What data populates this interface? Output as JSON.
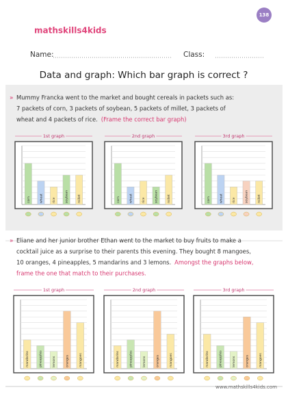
{
  "header": {
    "logo": "mathskills4kids",
    "page_number": "138",
    "name_label": "Name:",
    "class_label": "Class:",
    "title": "Data and graph: Which bar graph is correct ?"
  },
  "sections": [
    {
      "lines": [
        "Mummy Francka went to the market and bought cereals in packets such as:",
        "7 packets of corn, 3 packets of soybean, 5 packets of millet, 3 packets of",
        "wheat and 4 packets of rice."
      ],
      "instruction_lines": [
        "(Frame the correct bar graph)"
      ],
      "ylim": [
        0,
        10
      ],
      "yticks": [
        1,
        2,
        3,
        4,
        5,
        6,
        7,
        8,
        9,
        10
      ],
      "graphs": [
        {
          "title": "1st graph",
          "categories": [
            "corn",
            "wheat",
            "rice",
            "soybean",
            "millet"
          ],
          "values": [
            7,
            4,
            3,
            5,
            5
          ],
          "colors": [
            "#b9dfa6",
            "#bcd3f2",
            "#fbe8a6",
            "#b9dfa6",
            "#fbe8a6"
          ]
        },
        {
          "title": "2nd graph",
          "categories": [
            "corn",
            "wheat",
            "rice",
            "soybean",
            "millet"
          ],
          "values": [
            7,
            3,
            4,
            3,
            5
          ],
          "colors": [
            "#b9dfa6",
            "#bcd3f2",
            "#fbe8a6",
            "#b9dfa6",
            "#fbe8a6"
          ]
        },
        {
          "title": "3rd graph",
          "categories": [
            "corn",
            "wheat",
            "rice",
            "soybean",
            "millet"
          ],
          "values": [
            7,
            5,
            3,
            4,
            4
          ],
          "colors": [
            "#b9dfa6",
            "#bcd3f2",
            "#fbe8a6",
            "#f7d2c0",
            "#fbe8a6"
          ]
        }
      ]
    },
    {
      "lines": [
        "Eliane and her junior brother Ethan went to the market to buy fruits to make a",
        "cocktail juice as a surprise to their parents this evening. They bought 8 mangoes,",
        "10 oranges, 4 pineapples, 5 mandarins and 3 lemons."
      ],
      "instruction_lines": [
        "Amongst the graphs below,",
        "frame the one that match to their purchases."
      ],
      "ylim": [
        0,
        12
      ],
      "yticks": [
        1,
        2,
        3,
        4,
        5,
        6,
        7,
        8,
        9,
        10,
        11,
        12
      ],
      "graphs": [
        {
          "title": "1st graph",
          "categories": [
            "mandarins",
            "pineapples",
            "lemons",
            "oranges",
            "mangoes"
          ],
          "values": [
            5,
            4,
            3,
            10,
            8
          ],
          "colors": [
            "#fbe8a6",
            "#c9e6b3",
            "#e3f2c6",
            "#f9c99a",
            "#fbe8a6"
          ]
        },
        {
          "title": "2nd graph",
          "categories": [
            "mandarins",
            "pineapples",
            "lemons",
            "oranges",
            "mangoes"
          ],
          "values": [
            4,
            5,
            3,
            10,
            6
          ],
          "colors": [
            "#fbe8a6",
            "#c9e6b3",
            "#e3f2c6",
            "#f9c99a",
            "#fbe8a6"
          ]
        },
        {
          "title": "3rd graph",
          "categories": [
            "mandarins",
            "pineapples",
            "lemons",
            "oranges",
            "mangoes"
          ],
          "values": [
            6,
            4,
            3,
            9,
            8
          ],
          "colors": [
            "#fbe8a6",
            "#c9e6b3",
            "#e3f2c6",
            "#f9c99a",
            "#fbe8a6"
          ]
        }
      ]
    }
  ],
  "footer": "www.mathskills4kids.com"
}
